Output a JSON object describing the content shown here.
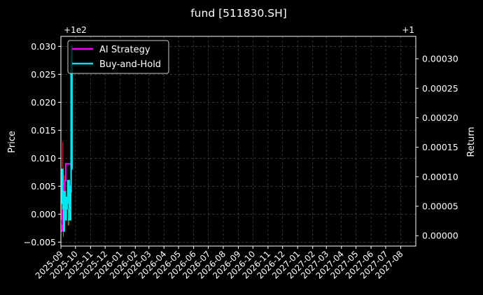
{
  "chart_data": {
    "type": "line",
    "title": "fund [511830.SH]",
    "xlabel": "",
    "ylabel": "Price",
    "ylabel_right": "Return",
    "offset_left": "+1e2",
    "offset_right": "+1",
    "grid": true,
    "legend_position": "top-left",
    "xlim": [
      "2025-09-01",
      "2027-09-01"
    ],
    "ylim": [
      -0.0057,
      0.0318
    ],
    "ylim_right": [
      -1.75e-05,
      0.000338
    ],
    "x_ticks": [
      "2025-09",
      "2025-10",
      "2025-11",
      "2025-12",
      "2026-01",
      "2026-02",
      "2026-03",
      "2026-04",
      "2026-05",
      "2026-06",
      "2026-07",
      "2026-08",
      "2026-09",
      "2026-10",
      "2026-11",
      "2026-12",
      "2027-01",
      "2027-02",
      "2027-03",
      "2027-04",
      "2027-05",
      "2027-06",
      "2027-07",
      "2027-08"
    ],
    "y_ticks": [
      -0.005,
      0.0,
      0.005,
      0.01,
      0.015,
      0.02,
      0.025,
      0.03
    ],
    "y_tick_labels": [
      "−0.005",
      "0.000",
      "0.005",
      "0.010",
      "0.015",
      "0.020",
      "0.025",
      "0.030"
    ],
    "y_ticks_right": [
      0.0,
      5e-05,
      0.0001,
      0.00015,
      0.0002,
      0.00025,
      0.0003
    ],
    "y_tick_labels_right": [
      "0.00000",
      "0.00005",
      "0.00010",
      "0.00015",
      "0.00020",
      "0.00025",
      "0.00030"
    ],
    "series": [
      {
        "name": "AI Strategy",
        "color": "#ff00ff",
        "x": [
          "2025-09-01",
          "2025-09-03",
          "2025-09-04",
          "2025-09-05",
          "2025-09-08",
          "2025-09-09",
          "2025-09-10",
          "2025-09-11",
          "2025-09-12",
          "2025-09-15",
          "2025-09-16",
          "2025-09-17",
          "2025-09-18",
          "2025-09-19",
          "2025-09-22",
          "2025-09-23",
          "2025-09-24"
        ],
        "y": [
          -0.003,
          -0.003,
          -0.002,
          0.001,
          0.001,
          0.006,
          0.006,
          0.009,
          0.009,
          0.009,
          0.009,
          0.009,
          0.009,
          0.009,
          0.008,
          0.008,
          0.008
        ]
      },
      {
        "name": "Buy-and-Hold",
        "color": "#00e5ee",
        "x": [
          "2025-09-01",
          "2025-09-02",
          "2025-09-03",
          "2025-09-04",
          "2025-09-05",
          "2025-09-06",
          "2025-09-07",
          "2025-09-08",
          "2025-09-09",
          "2025-09-10",
          "2025-09-11",
          "2025-09-12",
          "2025-09-13",
          "2025-09-14",
          "2025-09-15",
          "2025-09-16",
          "2025-09-17",
          "2025-09-18",
          "2025-09-19",
          "2025-09-20",
          "2025-09-21",
          "2025-09-22",
          "2025-09-23",
          "2025-09-24"
        ],
        "y": [
          0.005,
          0.008,
          0.002,
          0.008,
          0.001,
          0.004,
          -0.003,
          0.003,
          0.004,
          0.002,
          -0.001,
          0.003,
          0.001,
          0.003,
          0.006,
          0.002,
          0.006,
          -0.001,
          0.005,
          -0.001,
          0.004,
          0.028,
          0.03,
          0.008
        ]
      }
    ],
    "price_bars": {
      "color_up": "#ff3030",
      "color_down": "#20c040",
      "x": [
        "2025-09-02",
        "2025-09-05",
        "2025-09-06",
        "2025-09-08",
        "2025-09-16",
        "2025-09-18"
      ],
      "low": [
        -0.001,
        0.004,
        -0.004,
        0.002,
        -0.002,
        -0.002
      ],
      "high": [
        0.006,
        0.013,
        0.002,
        0.007,
        0.001,
        0.001
      ],
      "up": [
        true,
        true,
        false,
        true,
        false,
        true
      ]
    }
  }
}
